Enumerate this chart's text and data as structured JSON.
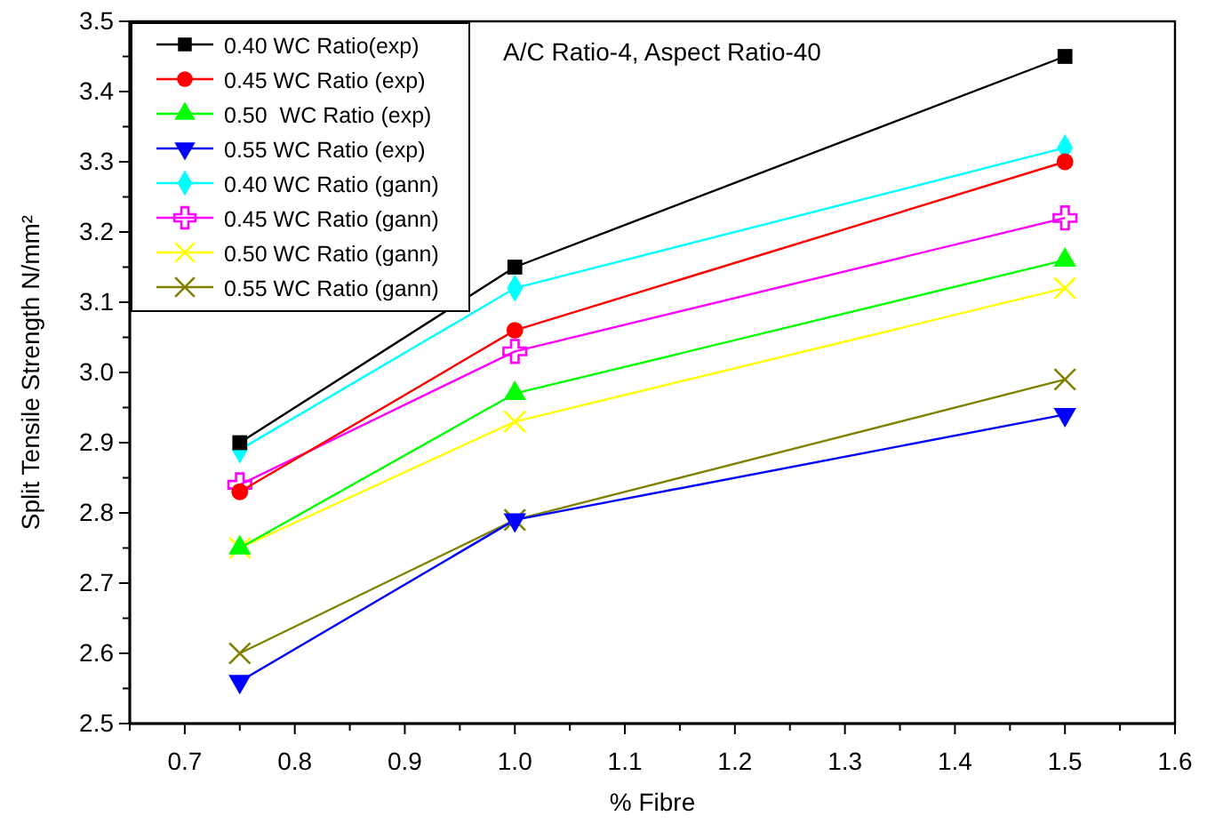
{
  "chart_data": {
    "type": "line",
    "xlabel": "% Fibre",
    "ylabel": "Split Tensile  Strength N/mm²",
    "annotations": [
      "A/C Ratio-4, Aspect Ratio-40"
    ],
    "x": [
      0.75,
      1.0,
      1.5
    ],
    "xlim": [
      0.65,
      1.6
    ],
    "xticks": [
      {
        "value": 0.65,
        "label": null
      },
      {
        "value": 0.7,
        "label": "0.7"
      },
      {
        "value": 0.75,
        "label": null
      },
      {
        "value": 0.8,
        "label": "0.8"
      },
      {
        "value": 0.85,
        "label": null
      },
      {
        "value": 0.9,
        "label": "0.9"
      },
      {
        "value": 0.95,
        "label": null
      },
      {
        "value": 1.0,
        "label": "1.0"
      },
      {
        "value": 1.05,
        "label": null
      },
      {
        "value": 1.1,
        "label": "1.1"
      },
      {
        "value": 1.15,
        "label": null
      },
      {
        "value": 1.2,
        "label": "1.2"
      },
      {
        "value": 1.25,
        "label": null
      },
      {
        "value": 1.3,
        "label": "1.3"
      },
      {
        "value": 1.35,
        "label": null
      },
      {
        "value": 1.4,
        "label": "1.4"
      },
      {
        "value": 1.45,
        "label": null
      },
      {
        "value": 1.5,
        "label": "1.5"
      },
      {
        "value": 1.55,
        "label": null
      },
      {
        "value": 1.6,
        "label": "1.6"
      }
    ],
    "ylim": [
      2.5,
      3.5
    ],
    "yticks": [
      2.5,
      {
        "value": 2.55,
        "label": null
      },
      2.6,
      {
        "value": 2.65,
        "label": null
      },
      2.7,
      {
        "value": 2.75,
        "label": null
      },
      2.8,
      {
        "value": 2.85,
        "label": null
      },
      2.9,
      {
        "value": 2.95,
        "label": null
      },
      {
        "value": 3.0,
        "label": "3.0"
      },
      {
        "value": 3.05,
        "label": null
      },
      3.1,
      {
        "value": 3.15,
        "label": null
      },
      3.2,
      {
        "value": 3.25,
        "label": null
      },
      3.3,
      {
        "value": 3.35,
        "label": null
      },
      3.4,
      {
        "value": 3.45,
        "label": null
      },
      3.5
    ],
    "grid": false,
    "legend": "top left",
    "line_style": "solid",
    "series": [
      {
        "name": "0.40 WC Ratio(exp)",
        "color": "#000000",
        "marker": "square",
        "values": [
          2.9,
          3.15,
          3.45
        ]
      },
      {
        "name": "0.45 WC Ratio (exp)",
        "color": "#ff0000",
        "marker": "circle",
        "values": [
          2.83,
          3.06,
          3.3
        ]
      },
      {
        "name": "0.50  WC Ratio (exp)",
        "color": "#00ff00",
        "marker": "triangle",
        "values": [
          2.75,
          2.97,
          3.16
        ]
      },
      {
        "name": "0.55 WC Ratio (exp)",
        "color": "#0000ff",
        "marker": "triangle-down",
        "values": [
          2.56,
          2.79,
          2.94
        ]
      },
      {
        "name": "0.40 WC Ratio (gann)",
        "color": "#00ffff",
        "marker": "diamond",
        "values": [
          2.89,
          3.12,
          3.32
        ]
      },
      {
        "name": "0.45 WC Ratio (gann)",
        "color": "#ff00ff",
        "marker": "plus",
        "values": [
          2.84,
          3.03,
          3.22
        ]
      },
      {
        "name": "0.50 WC Ratio (gann)",
        "color": "#ffff00",
        "marker": "cross",
        "values": [
          2.75,
          2.93,
          3.12
        ]
      },
      {
        "name": "0.55 WC Ratio (gann)",
        "color": "#808000",
        "marker": "cross",
        "values": [
          2.6,
          2.79,
          2.99
        ]
      }
    ]
  }
}
